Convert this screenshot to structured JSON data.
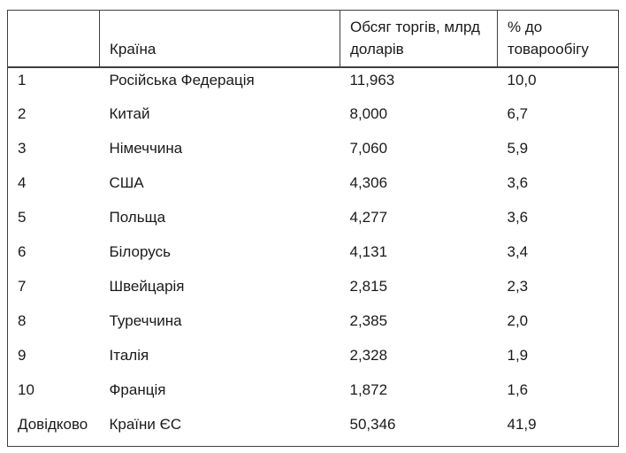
{
  "table": {
    "headers": [
      "",
      "Країна",
      "Обсяг торгів, млрд доларів",
      "% до товарообігу"
    ],
    "rows": [
      {
        "rank": "1",
        "country": "Російська Федерація",
        "volume": "11,963",
        "percent": "10,0"
      },
      {
        "rank": "2",
        "country": "Китай",
        "volume": "8,000",
        "percent": "6,7"
      },
      {
        "rank": "3",
        "country": "Німеччина",
        "volume": "7,060",
        "percent": "5,9"
      },
      {
        "rank": "4",
        "country": "США",
        "volume": "4,306",
        "percent": "3,6"
      },
      {
        "rank": "5",
        "country": "Польща",
        "volume": "4,277",
        "percent": "3,6"
      },
      {
        "rank": "6",
        "country": "Білорусь",
        "volume": "4,131",
        "percent": "3,4"
      },
      {
        "rank": "7",
        "country": "Швейцарія",
        "volume": "2,815",
        "percent": "2,3"
      },
      {
        "rank": "8",
        "country": "Туреччина",
        "volume": "2,385",
        "percent": "2,0"
      },
      {
        "rank": "9",
        "country": "Італія",
        "volume": "2,328",
        "percent": "1,9"
      },
      {
        "rank": "10",
        "country": "Франція",
        "volume": "1,872",
        "percent": "1,6"
      },
      {
        "rank": "Довідково",
        "country": "Країни ЄС",
        "volume": "50,346",
        "percent": "41,9"
      }
    ]
  },
  "chart_data": {
    "type": "table",
    "title": "",
    "columns": [
      "",
      "Країна",
      "Обсяг торгів, млрд доларів",
      "% до товарообігу"
    ],
    "rows": [
      [
        "1",
        "Російська Федерація",
        "11,963",
        "10,0"
      ],
      [
        "2",
        "Китай",
        "8,000",
        "6,7"
      ],
      [
        "3",
        "Німеччина",
        "7,060",
        "5,9"
      ],
      [
        "4",
        "США",
        "4,306",
        "3,6"
      ],
      [
        "5",
        "Польща",
        "4,277",
        "3,6"
      ],
      [
        "6",
        "Білорусь",
        "4,131",
        "3,4"
      ],
      [
        "7",
        "Швейцарія",
        "2,815",
        "2,3"
      ],
      [
        "8",
        "Туреччина",
        "2,385",
        "2,0"
      ],
      [
        "9",
        "Італія",
        "2,328",
        "1,9"
      ],
      [
        "10",
        "Франція",
        "1,872",
        "1,6"
      ],
      [
        "Довідково",
        "Країни ЄС",
        "50,346",
        "41,9"
      ]
    ],
    "numeric": {
      "volume_bln_usd": [
        11.963,
        8.0,
        7.06,
        4.306,
        4.277,
        4.131,
        2.815,
        2.385,
        2.328,
        1.872
      ],
      "percent_of_turnover": [
        10.0,
        6.7,
        5.9,
        3.6,
        3.6,
        3.4,
        2.3,
        2.0,
        1.9,
        1.6
      ],
      "reference_eu_volume_bln_usd": 50.346,
      "reference_eu_percent": 41.9
    }
  },
  "colors": {
    "background": "#ffffff",
    "border": "#3f3f3f",
    "text": "#1a1a1a"
  }
}
